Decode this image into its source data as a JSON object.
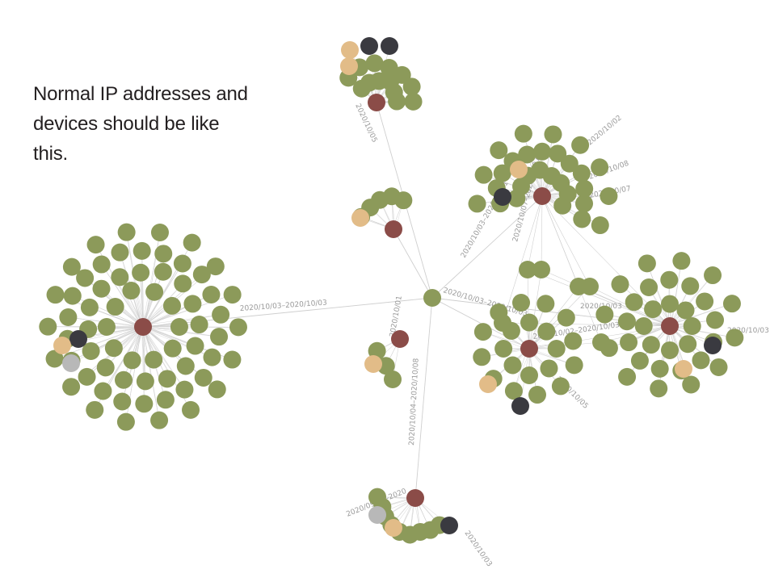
{
  "caption": {
    "lines": [
      "Normal IP addresses and",
      "devices should be like",
      "this."
    ]
  },
  "colors": {
    "background": "#ffffff",
    "device": "#8c9a5a",
    "hub": "#8b4c48",
    "ip_beige": "#e2bc88",
    "ip_dark": "#3a3a40",
    "ip_gray": "#b8b8b8",
    "edge": "#cfcfcf"
  },
  "legend_note": "node colors: green = device, red-brown = cluster hub, beige / dark / gray = IP variants",
  "edge_labels": [
    "2020/10/03–2020/10/03",
    "2020/10/04–2020/10/08",
    "2020/10/03–2020/10/03",
    "2020/10/01",
    "2020/10/03",
    "2020/10/07–2020/10/07",
    "2020/10/02–2020/10/03",
    "2020/10/05",
    "2020/10/03–2020/10/01",
    "2020/10/08",
    "2020/10/02",
    "2020/10/05",
    "2020/10/07",
    "2020/10/03",
    "2020/09/29–2020",
    "2020/10/03"
  ]
}
